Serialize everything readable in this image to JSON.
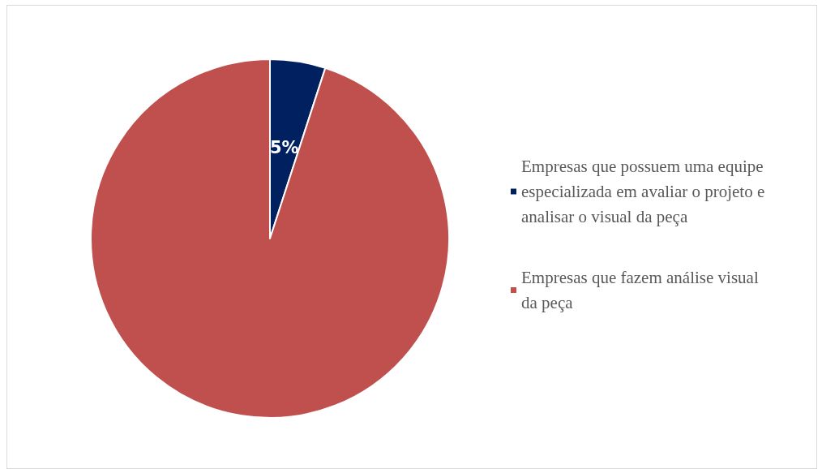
{
  "chart_data": {
    "type": "pie",
    "categories": [
      "Empresas que possuem uma equipe especializada em avaliar o projeto e analisar o visual da peça",
      "Empresas que fazem análise visual da peça"
    ],
    "values": [
      5,
      95
    ],
    "colors": [
      "#002060",
      "#c0504d"
    ],
    "value_labels": [
      "5%",
      null
    ],
    "legend": "right"
  }
}
